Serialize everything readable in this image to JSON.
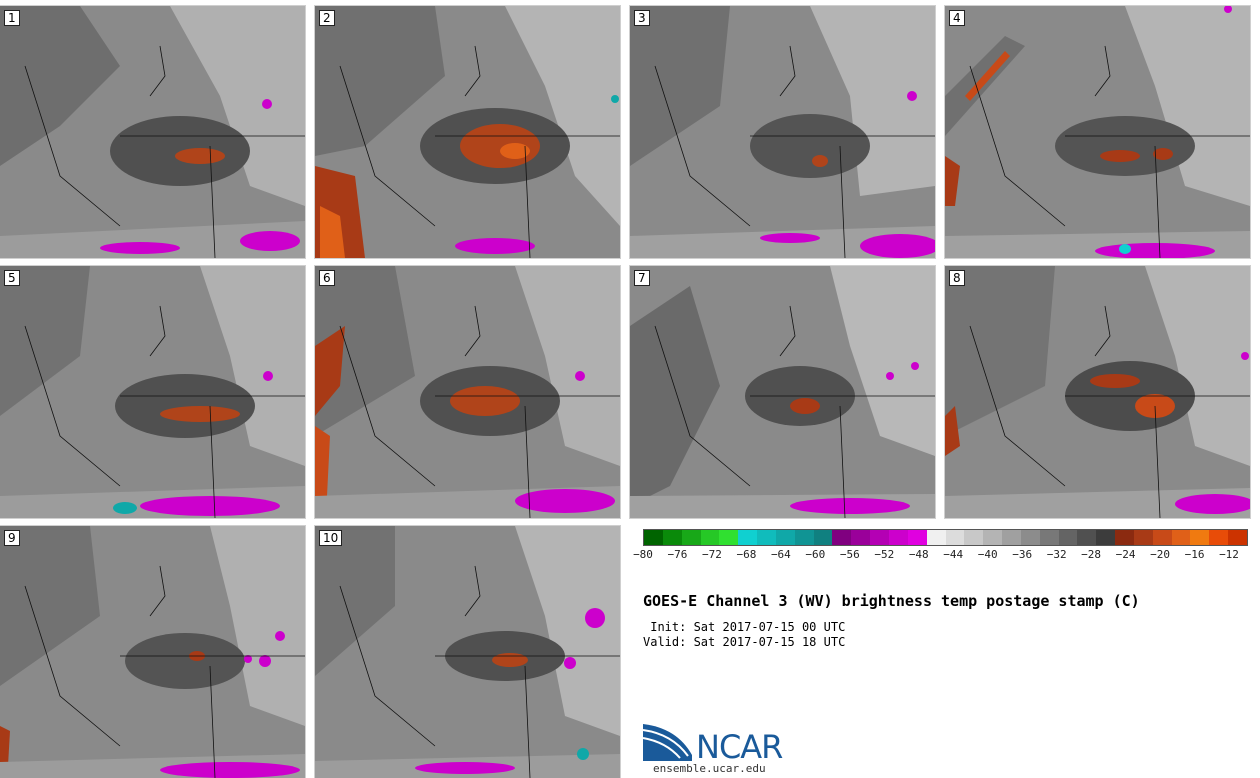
{
  "panels": [
    {
      "label": "1"
    },
    {
      "label": "2"
    },
    {
      "label": "3"
    },
    {
      "label": "4"
    },
    {
      "label": "5"
    },
    {
      "label": "6"
    },
    {
      "label": "7"
    },
    {
      "label": "8"
    },
    {
      "label": "9"
    },
    {
      "label": "10"
    }
  ],
  "colorbar": {
    "colors": [
      "#006400",
      "#0a8a0a",
      "#18a818",
      "#26c826",
      "#30e030",
      "#10d0d0",
      "#10bcbc",
      "#10a8a8",
      "#109494",
      "#108080",
      "#800080",
      "#9a009a",
      "#b400b4",
      "#cc00cc",
      "#e000e0",
      "#f0f0f0",
      "#dcdcdc",
      "#c8c8c8",
      "#b4b4b4",
      "#a0a0a0",
      "#8c8c8c",
      "#787878",
      "#646464",
      "#505050",
      "#3c3c3c",
      "#8b2a10",
      "#a83a16",
      "#c84a18",
      "#e06018",
      "#f07a10",
      "#e84c08",
      "#cc3300"
    ],
    "ticks": [
      "−80",
      "−76",
      "−72",
      "−68",
      "−64",
      "−60",
      "−56",
      "−52",
      "−48",
      "−44",
      "−40",
      "−36",
      "−32",
      "−28",
      "−24",
      "−20",
      "−16",
      "−12"
    ]
  },
  "title": "GOES-E Channel 3 (WV) brightness temp postage stamp (C)",
  "init": " Init: Sat 2017-07-15 00 UTC",
  "valid": "Valid: Sat 2017-07-15 18 UTC",
  "logo": {
    "text": "NCAR",
    "url": "ensemble.ucar.edu"
  }
}
